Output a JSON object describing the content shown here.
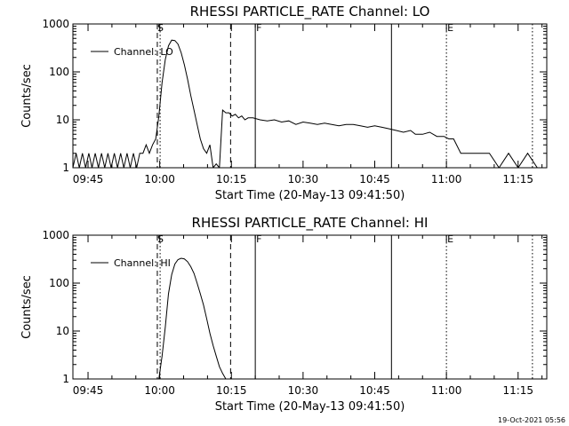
{
  "timestamp": "19-Oct-2021 05:56",
  "chart_data": [
    {
      "type": "line",
      "title": "RHESSI PARTICLE_RATE Channel: LO",
      "xlabel": "Start Time (20-May-13 09:41:50)",
      "ylabel": "Counts/sec",
      "yscale": "log",
      "ylim": [
        1,
        1000
      ],
      "xlim": [
        "09:41:50",
        "11:21:00"
      ],
      "xticks": [
        "09:45",
        "10:00",
        "10:15",
        "10:30",
        "10:45",
        "11:00",
        "11:15"
      ],
      "yticks": [
        "1",
        "10",
        "100",
        "1000"
      ],
      "legend": "top-left",
      "series": [
        {
          "name": "Channel: LO",
          "x": [
            "09:41:50",
            "09:42:30",
            "09:43:10",
            "09:43:50",
            "09:44:30",
            "09:45:10",
            "09:45:50",
            "09:46:30",
            "09:47:10",
            "09:47:50",
            "09:48:30",
            "09:49:10",
            "09:49:50",
            "09:50:30",
            "09:51:10",
            "09:51:50",
            "09:52:30",
            "09:53:10",
            "09:53:50",
            "09:54:30",
            "09:55:10",
            "09:55:50",
            "09:56:30",
            "09:57:10",
            "09:57:50",
            "09:58:30",
            "09:59:10",
            "09:59:50",
            "10:00:30",
            "10:01:10",
            "10:01:50",
            "10:02:30",
            "10:03:10",
            "10:03:50",
            "10:04:30",
            "10:05:10",
            "10:05:50",
            "10:06:30",
            "10:07:10",
            "10:07:50",
            "10:08:30",
            "10:09:10",
            "10:09:50",
            "10:10:30",
            "10:11:10",
            "10:11:50",
            "10:12:30",
            "10:13:10",
            "10:13:50",
            "10:14:30",
            "10:15:10",
            "10:15:50",
            "10:16:30",
            "10:17:10",
            "10:17:50",
            "10:18:30",
            "10:19:30",
            "10:21:00",
            "10:22:30",
            "10:24:00",
            "10:25:30",
            "10:27:00",
            "10:28:30",
            "10:30:00",
            "10:31:30",
            "10:33:00",
            "10:34:30",
            "10:36:00",
            "10:37:30",
            "10:39:00",
            "10:40:30",
            "10:42:00",
            "10:43:30",
            "10:45:00",
            "10:46:30",
            "10:48:00",
            "10:49:30",
            "10:51:00",
            "10:52:30",
            "10:53:30",
            "10:55:00",
            "10:56:30",
            "10:58:00",
            "10:59:30",
            "11:00:30",
            "11:01:30",
            "11:03:00",
            "11:05:00",
            "11:07:00",
            "11:09:00",
            "11:11:00",
            "11:13:00",
            "11:15:00",
            "11:17:00",
            "11:19:00"
          ],
          "values": [
            1,
            2,
            1,
            2,
            1,
            2,
            1,
            2,
            1,
            2,
            1,
            2,
            1,
            2,
            1,
            2,
            1,
            2,
            1,
            2,
            1,
            2,
            2,
            3,
            2,
            3,
            4,
            12,
            60,
            180,
            350,
            460,
            450,
            380,
            250,
            140,
            70,
            32,
            16,
            8,
            4,
            2.5,
            2,
            3,
            1,
            1.2,
            1,
            16,
            14,
            14,
            12,
            13,
            11,
            12,
            10,
            11,
            11,
            10,
            9.5,
            10,
            9,
            9.5,
            8,
            9,
            8.5,
            8,
            8.5,
            8,
            7.5,
            8,
            8,
            7.5,
            7,
            7.5,
            7,
            6.5,
            6,
            5.5,
            6,
            5,
            5,
            5.5,
            4.5,
            4.5,
            4,
            4,
            2,
            2,
            2,
            2,
            1,
            2,
            1,
            2,
            1
          ]
        }
      ],
      "annotations": [
        "S",
        "F",
        "E"
      ]
    },
    {
      "type": "line",
      "title": "RHESSI PARTICLE_RATE Channel: HI",
      "xlabel": "Start Time (20-May-13 09:41:50)",
      "ylabel": "Counts/sec",
      "yscale": "log",
      "ylim": [
        1,
        1000
      ],
      "xlim": [
        "09:41:50",
        "11:21:00"
      ],
      "xticks": [
        "09:45",
        "10:00",
        "10:15",
        "10:30",
        "10:45",
        "11:00",
        "11:15"
      ],
      "yticks": [
        "1",
        "10",
        "100",
        "1000"
      ],
      "legend": "top-left",
      "series": [
        {
          "name": "Channel: HI",
          "x": [
            "09:59:50",
            "10:00:30",
            "10:01:10",
            "10:01:50",
            "10:02:30",
            "10:03:10",
            "10:03:50",
            "10:04:30",
            "10:05:10",
            "10:05:50",
            "10:06:30",
            "10:07:10",
            "10:07:50",
            "10:08:30",
            "10:09:10",
            "10:09:50",
            "10:10:30",
            "10:11:10",
            "10:11:50",
            "10:12:30",
            "10:13:10",
            "10:13:50"
          ],
          "values": [
            1,
            3,
            12,
            60,
            150,
            250,
            310,
            330,
            320,
            280,
            220,
            160,
            100,
            60,
            35,
            18,
            9,
            5,
            3,
            1.8,
            1.3,
            1
          ]
        }
      ],
      "annotations": [
        "S",
        "F",
        "E"
      ]
    }
  ],
  "marker_lines": [
    {
      "time": "09:59:30",
      "style": "dashed"
    },
    {
      "time": "10:00:05",
      "style": "dotted"
    },
    {
      "time": "10:14:50",
      "style": "dashed"
    },
    {
      "time": "10:20:00",
      "style": "solid"
    },
    {
      "time": "10:48:30",
      "style": "solid"
    },
    {
      "time": "11:00:00",
      "style": "dotted"
    },
    {
      "time": "11:18:00",
      "style": "dotted"
    }
  ],
  "annotation_times": [
    "09:59:20",
    "10:20:00",
    "11:00:00"
  ]
}
